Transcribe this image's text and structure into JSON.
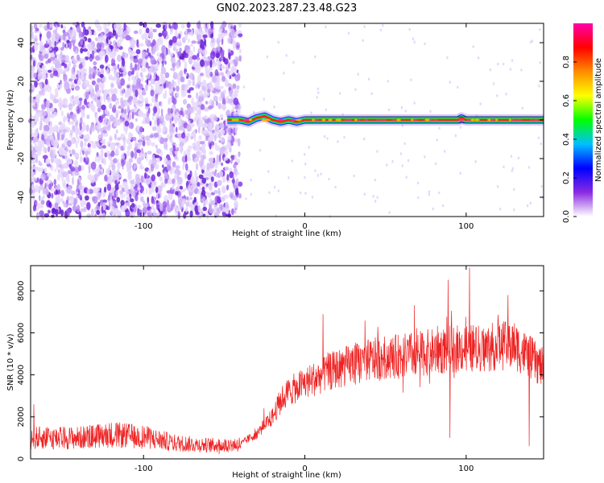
{
  "title": "GN02.2023.287.23.48.G23",
  "chart_data": [
    {
      "type": "heatmap",
      "xlabel": "Height of straight line (km)",
      "ylabel": "Frequency (Hz)",
      "xlim": [
        -170,
        148
      ],
      "ylim": [
        -50,
        50
      ],
      "xticks": [
        -100,
        0,
        100
      ],
      "yticks": [
        -40,
        -20,
        0,
        20,
        40
      ],
      "grid": false,
      "noise_region_x": [
        -170,
        -40
      ],
      "signal_line": {
        "x": [
          -48,
          -40,
          -35,
          -30,
          -25,
          -20,
          -15,
          -10,
          -5,
          0,
          20,
          40,
          60,
          80,
          95,
          97,
          100,
          120,
          140,
          148
        ],
        "freq": [
          0,
          0,
          -1,
          1,
          2,
          0,
          -1,
          0,
          -1,
          0,
          0,
          0,
          0,
          0,
          0,
          1,
          0,
          0,
          0,
          0
        ]
      },
      "colorbar": {
        "label": "Normalized spectral amplitude",
        "range": [
          0,
          1
        ],
        "ticks": [
          0.0,
          0.2,
          0.4,
          0.6,
          0.8
        ],
        "colors": [
          "#ffffff",
          "#8a2be2",
          "#0000ff",
          "#00c0ff",
          "#00ff00",
          "#ffff00",
          "#ff8c00",
          "#ff0000",
          "#ff00aa"
        ]
      }
    },
    {
      "type": "line",
      "xlabel": "Height of straight line (km)",
      "ylabel": "SNR (10 * v/v)",
      "xlim": [
        -170,
        148
      ],
      "ylim": [
        0,
        9200
      ],
      "xticks": [
        -100,
        0,
        100
      ],
      "yticks": [
        0,
        2000,
        4000,
        6000,
        8000
      ],
      "grid": false,
      "color": "#ee2222",
      "trend": {
        "x": [
          -170,
          -160,
          -140,
          -120,
          -100,
          -90,
          -80,
          -60,
          -50,
          -40,
          -30,
          -20,
          -15,
          -10,
          0,
          20,
          40,
          60,
          80,
          100,
          110,
          120,
          130,
          140,
          148
        ],
        "y": [
          1000,
          1000,
          1000,
          1150,
          1050,
          900,
          750,
          650,
          650,
          700,
          1200,
          2000,
          2800,
          3200,
          3600,
          4300,
          4700,
          4900,
          5100,
          5300,
          5200,
          5400,
          5400,
          4800,
          4300
        ]
      },
      "spikes": [
        {
          "x": 102,
          "y": 9100
        },
        {
          "x": 126,
          "y": 7800
        },
        {
          "x": -168,
          "y": 2600
        },
        {
          "x": 90,
          "y": 1000
        },
        {
          "x": 139,
          "y": 600
        }
      ]
    }
  ]
}
